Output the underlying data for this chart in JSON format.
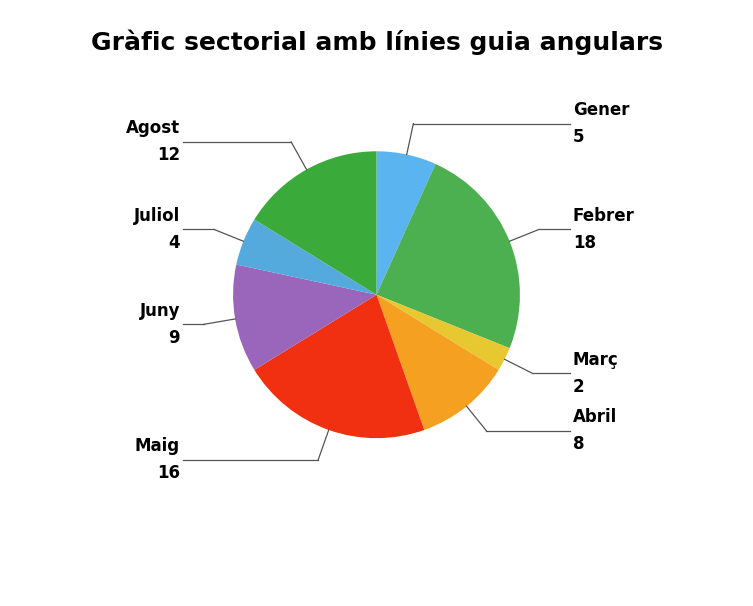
{
  "title": "Gràfic sectorial amb línies guia angulars",
  "labels": [
    "Gener",
    "Febrer",
    "Març",
    "Abril",
    "Maig",
    "Juny",
    "Juliol",
    "Agost"
  ],
  "values": [
    5,
    18,
    2,
    8,
    16,
    9,
    4,
    12
  ],
  "colors": [
    "#5ab4f0",
    "#4caf50",
    "#e8c830",
    "#f5a020",
    "#f03010",
    "#9966bb",
    "#55aadd",
    "#3aaa3a"
  ],
  "background_color": "#ffffff",
  "title_fontsize": 18,
  "label_fontsize": 12
}
